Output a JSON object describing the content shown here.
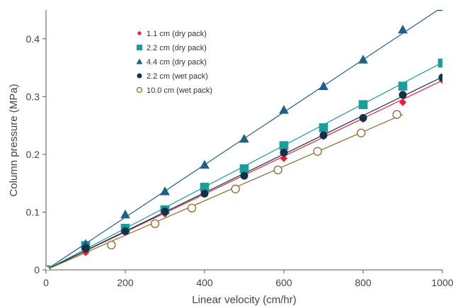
{
  "chart_data": {
    "type": "scatter",
    "title": "",
    "xlabel": "Linear velocity (cm/hr)",
    "ylabel": "Column pressure (MPa)",
    "xlim": [
      0,
      1000
    ],
    "ylim": [
      0,
      0.45
    ],
    "xticks": [
      0,
      200,
      400,
      600,
      800,
      1000
    ],
    "yticks": [
      0,
      0.1,
      0.2,
      0.3,
      0.4
    ],
    "ytick_labels": [
      "0",
      "0.1",
      "0.2",
      "0.3",
      "0.4"
    ],
    "grid": false,
    "legend_position": "top-left",
    "series": [
      {
        "name": "1.1 cm (dry pack)",
        "marker": "diamond",
        "color": "#e0243c",
        "fit_slope": 0.000328,
        "x": [
          0,
          100,
          200,
          300,
          400,
          500,
          600,
          700,
          800,
          900,
          1000
        ],
        "y": [
          0,
          0.03,
          0.065,
          0.097,
          0.132,
          0.164,
          0.193,
          0.231,
          0.261,
          0.29,
          0.328
        ]
      },
      {
        "name": "2.2 cm (dry pack)",
        "marker": "square",
        "color": "#1e9c9c",
        "fit_slope": 0.000359,
        "x": [
          0,
          100,
          200,
          300,
          400,
          500,
          600,
          700,
          800,
          900,
          1000
        ],
        "y": [
          0,
          0.042,
          0.072,
          0.104,
          0.143,
          0.175,
          0.215,
          0.246,
          0.286,
          0.318,
          0.358
        ]
      },
      {
        "name": "4.4 cm (dry pack)",
        "marker": "triangle",
        "color": "#1f5f88",
        "fit_slope": 0.000455,
        "x": [
          0,
          100,
          200,
          300,
          400,
          500,
          600,
          700,
          800,
          900,
          1000
        ],
        "y": [
          0,
          0.045,
          0.096,
          0.136,
          0.182,
          0.227,
          0.277,
          0.318,
          0.364,
          0.416,
          0.455
        ]
      },
      {
        "name": "2.2 cm (wet pack)",
        "marker": "circle",
        "color": "#14304a",
        "fit_slope": 0.000334,
        "x": [
          0,
          100,
          200,
          300,
          400,
          500,
          600,
          700,
          800,
          900,
          1000
        ],
        "y": [
          0,
          0.037,
          0.067,
          0.101,
          0.132,
          0.163,
          0.203,
          0.233,
          0.263,
          0.303,
          0.333
        ]
      },
      {
        "name": "10.0 cm (wet pack)",
        "marker": "open-circle",
        "color": "#8a6a28",
        "fit_slope": 0.000299,
        "fit_xmax": 900,
        "x": [
          0,
          165,
          275,
          368,
          478,
          585,
          685,
          795,
          885
        ],
        "y": [
          0,
          0.043,
          0.08,
          0.107,
          0.14,
          0.173,
          0.205,
          0.237,
          0.269
        ]
      }
    ]
  }
}
